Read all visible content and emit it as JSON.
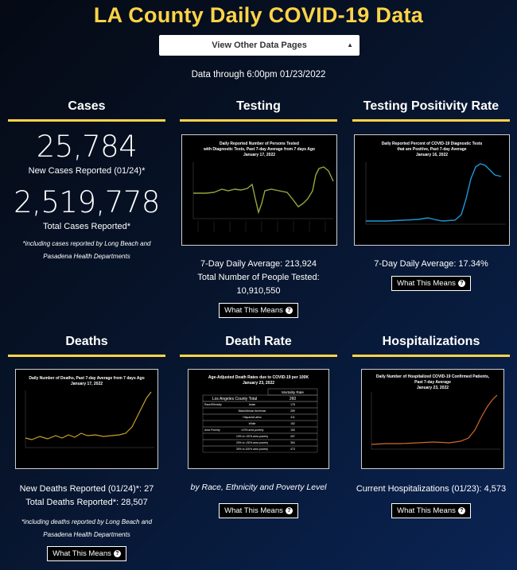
{
  "page_title": "LA County Daily COVID-19 Data",
  "nav_select": "View Other Data Pages",
  "as_of": "Data through 6:00pm 01/23/2022",
  "what_this_means": "What This Means",
  "cases": {
    "heading": "Cases",
    "new_value": "25,784",
    "new_label": "New Cases Reported (01/24)*",
    "total_value": "2,519,778",
    "total_label": "Total Cases Reported*",
    "note": "*including cases reported by Long Beach and Pasadena Health Departments"
  },
  "testing": {
    "heading": "Testing",
    "chart_title_1": "Daily Reported Number of Persons Tested",
    "chart_title_2": "with Diagnostic Tests, Past 7-day Average from 7 days Ago",
    "chart_title_3": "January 17, 2022",
    "stat_1": "7-Day Daily Average: 213,924",
    "stat_2": "Total Number of People Tested: 10,910,550"
  },
  "positivity": {
    "heading": "Testing Positivity Rate",
    "chart_title_1": "Daily Reported Percent of COVID-19 Diagnostic Tests",
    "chart_title_2": "that are Positive, Past 7-day Average",
    "chart_title_3": "January 16, 2022",
    "stat_1": "7-Day Daily Average: 17.34%"
  },
  "deaths": {
    "heading": "Deaths",
    "chart_title_1": "Daily Number of Deaths, Past 7-day Average from 7 days Ago",
    "chart_title_2": "January 17, 2022",
    "stat_1": "New Deaths Reported (01/24)*: 27",
    "stat_2": "Total Deaths Reported*: 28,507",
    "note": "*including deaths reported by Long Beach and Pasadena Health Departments"
  },
  "death_rate": {
    "heading": "Death Rate",
    "chart_title_1": "Age-Adjusted Death Rates due to COVID-19 per 100K",
    "chart_title_2": "January 23, 2022",
    "table_header": "Mortality Rate",
    "county_label": "Los Angeles County Total",
    "county_value": "260",
    "rows": [
      {
        "group": "Race/Ethnicity",
        "name": "Asian",
        "value": "178"
      },
      {
        "group": "",
        "name": "Black/African American",
        "value": "289"
      },
      {
        "group": "",
        "name": "Hispanic/Latino",
        "value": "411"
      },
      {
        "group": "",
        "name": "White",
        "value": "152"
      },
      {
        "group": "Area Poverty",
        "name": "<10% area poverty",
        "value": "150"
      },
      {
        "group": "",
        "name": "10% to <20% area poverty",
        "value": "267"
      },
      {
        "group": "",
        "name": "20% to <30% area poverty",
        "value": "354"
      },
      {
        "group": "",
        "name": "30% to 100% area poverty",
        "value": "473"
      }
    ],
    "caption": "by Race, Ethnicity and Poverty Level"
  },
  "hospitalizations": {
    "heading": "Hospitalizations",
    "chart_title_1": "Daily Number of Hospitalized COVID-19 Confirmed Patients,",
    "chart_title_2": "Past 7-day Average",
    "chart_title_3": "January 23, 2022",
    "stat_1": "Current Hospitalizations (01/23): 4,573"
  },
  "colors": {
    "accent": "#ffd447",
    "testing_line": "#9aa63a",
    "positivity_line": "#1e9ad6",
    "deaths_line": "#c8a12a",
    "hosp_line": "#d2692a"
  }
}
